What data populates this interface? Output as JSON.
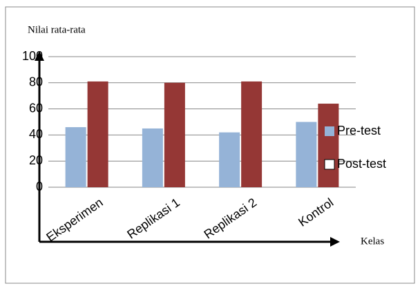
{
  "chart_data": {
    "type": "bar",
    "y_label": "Nilai rata-rata",
    "x_label": "Kelas",
    "categories": [
      "Eksperimen",
      "Replikasi 1",
      "Replikasi 2",
      "Kontrol"
    ],
    "series": [
      {
        "name": "Pre-test",
        "color": "#95b3d7",
        "values": [
          46,
          45,
          42,
          50
        ]
      },
      {
        "name": "Post-test",
        "color": "#953735",
        "values": [
          81,
          80,
          81,
          64
        ]
      }
    ],
    "ylim": [
      0,
      100
    ],
    "yticks": [
      0,
      20,
      40,
      60,
      80,
      100
    ],
    "grid": true,
    "legend": "right"
  }
}
